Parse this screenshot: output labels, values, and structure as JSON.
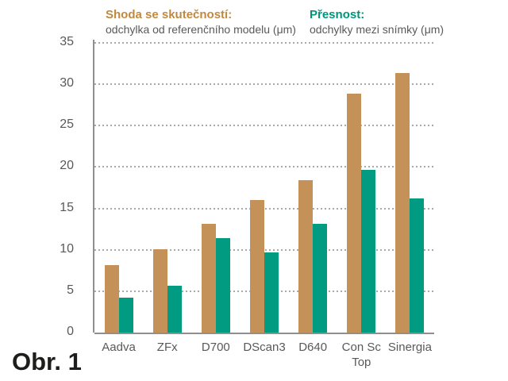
{
  "caption": "Obr. 1",
  "legend": {
    "series1": {
      "title": "Shoda se skutečností:",
      "subtitle": "odchylka od referenčního modelu (μm)",
      "title_color": "#c28840"
    },
    "series2": {
      "title": "Přesnost:",
      "subtitle": "odchylky mezi snímky (μm)",
      "title_color": "#00947c"
    }
  },
  "colors": {
    "bar_accuracy": "#c49158",
    "bar_precision": "#009b80",
    "axis": "#8f8f8f",
    "grid": "#a9a9a9",
    "tick_text": "#58595b"
  },
  "chart_data": {
    "type": "bar",
    "title": "",
    "categories": [
      "Aadva",
      "ZFx",
      "D700",
      "DScan3",
      "D640",
      "Con Sc Top",
      "Sinergia"
    ],
    "series": [
      {
        "name": "Shoda se skutečností: odchylka od referenčního modelu (μm)",
        "color": "#c49158",
        "values": [
          8.2,
          10.1,
          13.1,
          16.0,
          18.4,
          28.9,
          31.4
        ]
      },
      {
        "name": "Přesnost: odchylky mezi snímky (μm)",
        "color": "#009b80",
        "values": [
          4.2,
          5.7,
          11.4,
          9.7,
          13.1,
          19.7,
          16.2
        ]
      }
    ],
    "xlabel": "",
    "ylabel": "",
    "ylim": [
      0,
      35
    ],
    "yticks": [
      0,
      5,
      10,
      15,
      20,
      25,
      30,
      35
    ],
    "grid": "horizontal-dotted",
    "legend_position": "top"
  }
}
